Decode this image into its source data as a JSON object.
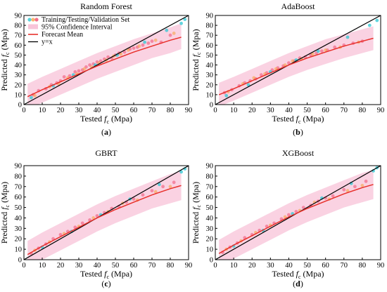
{
  "figure": {
    "axis_color": "#000000",
    "band_color": "#f39cbf",
    "mean_color": "#e8302b",
    "identity_color": "#000000",
    "training_color": "#ef4a6e",
    "testing_color": "#f7a44a",
    "validation_color": "#2ec8d4"
  },
  "chart_data": [
    {
      "type": "scatter",
      "title": "Random Forest",
      "panel_label": "(a)",
      "xlabel_prefix": "Tested ",
      "xlabel_var": "f",
      "xlabel_sub": "c",
      "xlabel_suffix": " (Mpa)",
      "ylabel_prefix": "Predicted ",
      "ylabel_var": "f",
      "ylabel_sub": "c",
      "ylabel_suffix": " (Mpa)",
      "xlim": [
        0,
        90
      ],
      "ylim": [
        0,
        90
      ],
      "xticks": [
        "0",
        "10",
        "20",
        "30",
        "40",
        "50",
        "60",
        "70",
        "80",
        "90"
      ],
      "yticks": [
        "0",
        "10",
        "20",
        "30",
        "40",
        "50",
        "60",
        "70",
        "80",
        "90"
      ],
      "legend": {
        "position": "top-left",
        "entries": [
          "Training/Testing/Validation Set",
          "95% Confidence Interval",
          "Forecast Mean",
          "y=x"
        ]
      },
      "forecast_mean": {
        "x": [
          2,
          10,
          20,
          30,
          40,
          50,
          60,
          70,
          80,
          86
        ],
        "y": [
          8,
          15,
          23,
          31,
          39,
          46,
          53,
          59,
          65,
          68
        ]
      },
      "confidence_band": {
        "x": [
          2,
          10,
          20,
          30,
          40,
          50,
          60,
          70,
          80,
          86
        ],
        "lower": [
          -5,
          2,
          10,
          18,
          26,
          33,
          40,
          47,
          52,
          56
        ],
        "upper": [
          21,
          28,
          36,
          44,
          52,
          59,
          66,
          72,
          78,
          82
        ]
      },
      "training_points": {
        "x": [
          5,
          8,
          12,
          15,
          18,
          20,
          22,
          25,
          28,
          30,
          32,
          34,
          36,
          38,
          40,
          42,
          44,
          46,
          48,
          50,
          52,
          55,
          58,
          60,
          62,
          65,
          68,
          70,
          75,
          80
        ],
        "y": [
          10,
          14,
          16,
          20,
          22,
          24,
          28,
          29,
          33,
          34,
          35,
          38,
          40,
          41,
          43,
          44,
          46,
          48,
          47,
          50,
          52,
          53,
          56,
          57,
          58,
          60,
          62,
          64,
          63,
          70
        ]
      },
      "testing_points": {
        "x": [
          6,
          14,
          19,
          24,
          29,
          33,
          37,
          41,
          45,
          49,
          53,
          57,
          63,
          72,
          82
        ],
        "y": [
          9,
          18,
          21,
          27,
          31,
          36,
          38,
          42,
          45,
          49,
          51,
          55,
          59,
          65,
          72
        ]
      },
      "validation_points": {
        "x": [
          4,
          16,
          27,
          39,
          51,
          66,
          78,
          86,
          88
        ],
        "y": [
          7,
          19,
          30,
          40,
          50,
          63,
          75,
          82,
          86
        ]
      }
    },
    {
      "type": "scatter",
      "title": "AdaBoost",
      "panel_label": "(b)",
      "xlabel_prefix": "Tested ",
      "xlabel_var": "f",
      "xlabel_sub": "c",
      "xlabel_suffix": " (Mpa)",
      "ylabel_prefix": "Predicted ",
      "ylabel_var": "f",
      "ylabel_sub": "c",
      "ylabel_suffix": " (Mpa)",
      "xlim": [
        0,
        90
      ],
      "ylim": [
        0,
        90
      ],
      "xticks": [
        "0",
        "10",
        "20",
        "30",
        "40",
        "50",
        "60",
        "70",
        "80",
        "90"
      ],
      "yticks": [
        "0",
        "10",
        "20",
        "30",
        "40",
        "50",
        "60",
        "70",
        "80",
        "90"
      ],
      "legend": null,
      "forecast_mean": {
        "x": [
          2,
          10,
          20,
          30,
          40,
          50,
          60,
          70,
          80,
          86
        ],
        "y": [
          10,
          16,
          24,
          32,
          40,
          47,
          53,
          59,
          64,
          67
        ]
      },
      "confidence_band": {
        "x": [
          2,
          10,
          20,
          30,
          40,
          50,
          60,
          70,
          80,
          86
        ],
        "lower": [
          -2,
          4,
          12,
          20,
          28,
          35,
          41,
          47,
          52,
          55
        ],
        "upper": [
          22,
          28,
          36,
          44,
          52,
          59,
          66,
          71,
          76,
          79
        ]
      },
      "training_points": {
        "x": [
          5,
          9,
          13,
          16,
          19,
          22,
          25,
          28,
          31,
          34,
          37,
          40,
          43,
          46,
          49,
          52,
          55,
          58,
          61,
          65,
          70,
          75,
          80
        ],
        "y": [
          12,
          15,
          19,
          22,
          24,
          26,
          30,
          32,
          35,
          37,
          39,
          42,
          44,
          47,
          48,
          50,
          52,
          54,
          55,
          58,
          60,
          62,
          64
        ]
      },
      "testing_points": {
        "x": [
          7,
          15,
          21,
          27,
          33,
          38,
          42,
          47,
          53,
          60,
          68,
          78
        ],
        "y": [
          13,
          21,
          27,
          31,
          36,
          40,
          44,
          46,
          51,
          55,
          58,
          63
        ]
      },
      "validation_points": {
        "x": [
          6,
          18,
          30,
          44,
          56,
          72,
          84,
          88
        ],
        "y": [
          9,
          20,
          33,
          45,
          54,
          68,
          80,
          85
        ]
      }
    },
    {
      "type": "scatter",
      "title": "GBRT",
      "panel_label": "(c)",
      "xlabel_prefix": "Tested ",
      "xlabel_var": "f",
      "xlabel_sub": "c",
      "xlabel_suffix": " (Mpa)",
      "ylabel_prefix": "Predicted ",
      "ylabel_var": "f",
      "ylabel_sub": "c",
      "ylabel_suffix": " (Mpa)",
      "xlim": [
        0,
        90
      ],
      "ylim": [
        0,
        90
      ],
      "xticks": [
        "0",
        "10",
        "20",
        "30",
        "40",
        "50",
        "60",
        "70",
        "80",
        "90"
      ],
      "yticks": [
        "0",
        "10",
        "20",
        "30",
        "40",
        "50",
        "60",
        "70",
        "80",
        "90"
      ],
      "legend": null,
      "forecast_mean": {
        "x": [
          2,
          10,
          20,
          30,
          40,
          50,
          60,
          70,
          80,
          86
        ],
        "y": [
          5,
          13,
          22,
          31,
          40,
          48,
          55,
          62,
          68,
          71
        ]
      },
      "confidence_band": {
        "x": [
          2,
          10,
          20,
          30,
          40,
          50,
          60,
          70,
          80,
          86
        ],
        "lower": [
          -8,
          0,
          9,
          18,
          27,
          35,
          42,
          49,
          54,
          57
        ],
        "upper": [
          18,
          26,
          35,
          44,
          53,
          61,
          68,
          75,
          82,
          85
        ]
      },
      "training_points": {
        "x": [
          4,
          8,
          12,
          16,
          20,
          24,
          28,
          32,
          36,
          40,
          44,
          48,
          52,
          56,
          60,
          65,
          70,
          76,
          82
        ],
        "y": [
          6,
          11,
          15,
          20,
          24,
          27,
          31,
          35,
          38,
          42,
          45,
          49,
          51,
          55,
          58,
          62,
          66,
          70,
          74
        ]
      },
      "testing_points": {
        "x": [
          6,
          14,
          22,
          30,
          38,
          46,
          54,
          62,
          72,
          80
        ],
        "y": [
          9,
          17,
          25,
          32,
          40,
          46,
          54,
          57,
          65,
          70
        ]
      },
      "validation_points": {
        "x": [
          10,
          26,
          42,
          58,
          74,
          86,
          88
        ],
        "y": [
          12,
          27,
          43,
          58,
          72,
          84,
          87
        ]
      }
    },
    {
      "type": "scatter",
      "title": "XGBoost",
      "panel_label": "(d)",
      "xlabel_prefix": "Tested ",
      "xlabel_var": "f",
      "xlabel_sub": "c",
      "xlabel_suffix": " (Mpa)",
      "ylabel_prefix": "Predicted ",
      "ylabel_var": "f",
      "ylabel_sub": "c",
      "ylabel_suffix": " (Mpa)",
      "xlim": [
        0,
        90
      ],
      "ylim": [
        0,
        90
      ],
      "xticks": [
        "0",
        "10",
        "20",
        "30",
        "40",
        "50",
        "60",
        "70",
        "80",
        "90"
      ],
      "yticks": [
        "0",
        "10",
        "20",
        "30",
        "40",
        "50",
        "60",
        "70",
        "80",
        "90"
      ],
      "legend": null,
      "forecast_mean": {
        "x": [
          2,
          10,
          20,
          30,
          40,
          50,
          60,
          70,
          80,
          86
        ],
        "y": [
          6,
          14,
          23,
          32,
          41,
          49,
          56,
          63,
          69,
          72
        ]
      },
      "confidence_band": {
        "x": [
          2,
          10,
          20,
          30,
          40,
          50,
          60,
          70,
          80,
          86
        ],
        "lower": [
          -7,
          1,
          10,
          19,
          28,
          36,
          43,
          50,
          55,
          58
        ],
        "upper": [
          19,
          27,
          36,
          45,
          54,
          62,
          69,
          76,
          83,
          86
        ]
      },
      "training_points": {
        "x": [
          4,
          8,
          12,
          16,
          20,
          24,
          28,
          32,
          36,
          40,
          44,
          48,
          52,
          56,
          60,
          64,
          70,
          76,
          82
        ],
        "y": [
          7,
          12,
          16,
          21,
          24,
          28,
          32,
          35,
          39,
          43,
          46,
          50,
          52,
          56,
          59,
          61,
          67,
          70,
          75
        ]
      },
      "testing_points": {
        "x": [
          6,
          14,
          22,
          30,
          38,
          46,
          54,
          62,
          72,
          80
        ],
        "y": [
          10,
          18,
          26,
          33,
          41,
          47,
          55,
          58,
          66,
          71
        ]
      },
      "validation_points": {
        "x": [
          10,
          26,
          42,
          58,
          74,
          86,
          88
        ],
        "y": [
          13,
          28,
          44,
          59,
          73,
          85,
          88
        ]
      }
    }
  ]
}
